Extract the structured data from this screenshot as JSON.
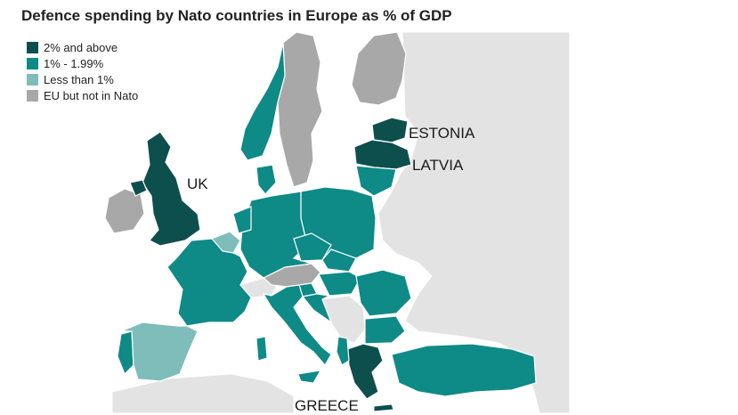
{
  "title": "Defence spending by Nato countries in Europe as % of GDP",
  "legend": [
    {
      "label": "2% and above",
      "color": "#0d4f4d"
    },
    {
      "label": "1% - 1.99%",
      "color": "#0e8a87"
    },
    {
      "label": "Less than 1%",
      "color": "#7fbdbb"
    },
    {
      "label": "EU but not in Nato",
      "color": "#a8a8a8"
    }
  ],
  "colors": {
    "land_other": "#e3e3e3",
    "sea": "#ffffff",
    "border": "#ffffff"
  },
  "labels": {
    "estonia": "ESTONIA",
    "latvia": "LATVIA",
    "uk": "UK",
    "greece": "GREECE"
  },
  "countries": [
    {
      "name": "United Kingdom",
      "category": "2% and above"
    },
    {
      "name": "Estonia",
      "category": "2% and above"
    },
    {
      "name": "Latvia",
      "category": "2% and above"
    },
    {
      "name": "Greece",
      "category": "2% and above"
    },
    {
      "name": "Poland",
      "category": "1% - 1.99%"
    },
    {
      "name": "France",
      "category": "1% - 1.99%"
    },
    {
      "name": "Germany",
      "category": "1% - 1.99%"
    },
    {
      "name": "Norway",
      "category": "1% - 1.99%"
    },
    {
      "name": "Denmark",
      "category": "1% - 1.99%"
    },
    {
      "name": "Netherlands",
      "category": "1% - 1.99%"
    },
    {
      "name": "Portugal",
      "category": "1% - 1.99%"
    },
    {
      "name": "Italy",
      "category": "1% - 1.99%"
    },
    {
      "name": "Turkey",
      "category": "1% - 1.99%"
    },
    {
      "name": "Romania",
      "category": "1% - 1.99%"
    },
    {
      "name": "Bulgaria",
      "category": "1% - 1.99%"
    },
    {
      "name": "Lithuania",
      "category": "1% - 1.99%"
    },
    {
      "name": "Czech Republic",
      "category": "1% - 1.99%"
    },
    {
      "name": "Slovakia",
      "category": "1% - 1.99%"
    },
    {
      "name": "Hungary",
      "category": "1% - 1.99%"
    },
    {
      "name": "Croatia",
      "category": "1% - 1.99%"
    },
    {
      "name": "Slovenia",
      "category": "1% - 1.99%"
    },
    {
      "name": "Albania",
      "category": "1% - 1.99%"
    },
    {
      "name": "Spain",
      "category": "Less than 1%"
    },
    {
      "name": "Belgium",
      "category": "Less than 1%"
    },
    {
      "name": "Sweden",
      "category": "EU but not in Nato"
    },
    {
      "name": "Finland",
      "category": "EU but not in Nato"
    },
    {
      "name": "Ireland",
      "category": "EU but not in Nato"
    },
    {
      "name": "Austria",
      "category": "EU but not in Nato"
    }
  ]
}
